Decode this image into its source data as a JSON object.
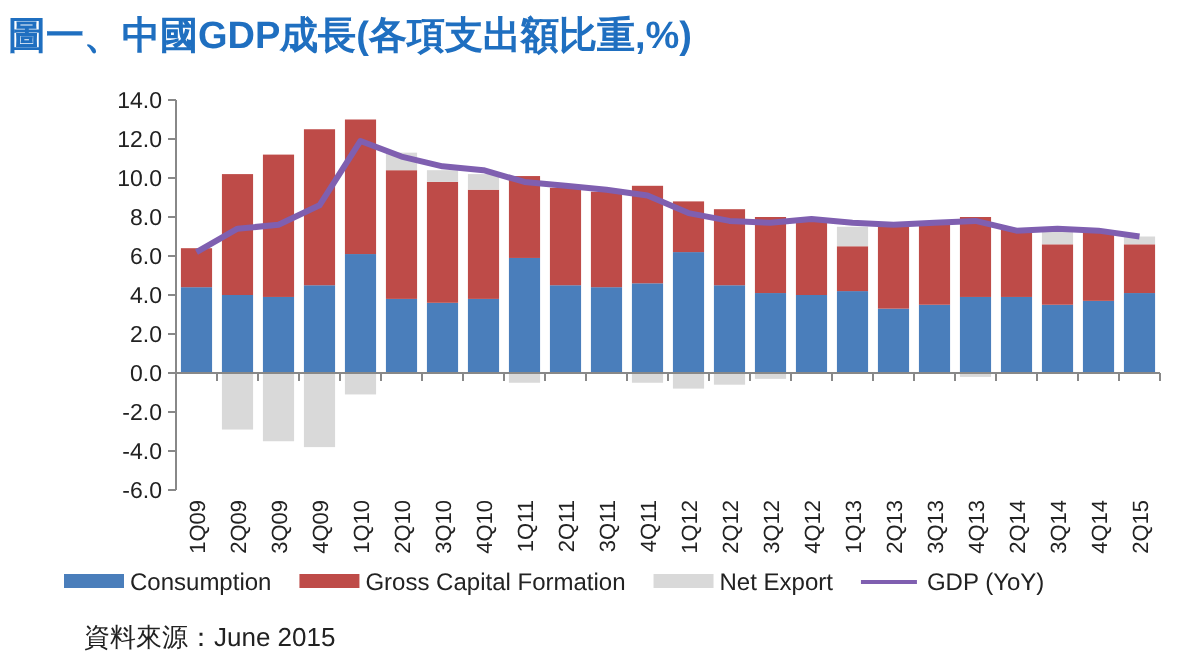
{
  "chart_data": {
    "type": "bar",
    "stacked": true,
    "title": "圖一、中國GDP成長(各項支出額比重,%)",
    "categories": [
      "1Q09",
      "2Q09",
      "3Q09",
      "4Q09",
      "1Q10",
      "2Q10",
      "3Q10",
      "4Q10",
      "1Q11",
      "2Q11",
      "3Q11",
      "4Q11",
      "1Q12",
      "2Q12",
      "3Q12",
      "4Q12",
      "1Q13",
      "2Q13",
      "3Q13",
      "4Q13",
      "2Q14",
      "3Q14",
      "4Q14",
      "2Q15"
    ],
    "series": [
      {
        "name": "Consumption",
        "color": "#4a7ebb",
        "values": [
          4.4,
          4.0,
          3.9,
          4.5,
          6.1,
          3.8,
          3.6,
          3.8,
          5.9,
          4.5,
          4.4,
          4.6,
          6.2,
          4.5,
          4.1,
          4.0,
          4.2,
          3.3,
          3.5,
          3.9,
          3.9,
          3.5,
          3.7,
          4.1
        ]
      },
      {
        "name": "Gross Capital Formation",
        "color": "#be4b48",
        "values": [
          2.0,
          6.2,
          7.3,
          8.0,
          6.9,
          6.6,
          6.2,
          5.6,
          4.2,
          5.0,
          4.9,
          5.0,
          2.6,
          3.9,
          3.9,
          3.8,
          2.3,
          4.2,
          4.2,
          4.1,
          3.5,
          3.1,
          3.6,
          2.5
        ]
      },
      {
        "name": "Net Export",
        "color": "#d9d9d9",
        "values": [
          null,
          -2.9,
          -3.5,
          -3.8,
          -1.1,
          0.9,
          0.6,
          0.8,
          -0.5,
          0.0,
          0.0,
          -0.5,
          -0.8,
          -0.6,
          -0.3,
          null,
          1.0,
          0.0,
          0.0,
          -0.2,
          null,
          0.7,
          0.0,
          0.4
        ]
      },
      {
        "name": "GDP (YoY)",
        "type": "line",
        "color": "#7f5fb0",
        "values": [
          6.2,
          7.4,
          7.6,
          8.6,
          11.9,
          11.1,
          10.6,
          10.4,
          9.8,
          9.6,
          9.4,
          9.1,
          8.2,
          7.8,
          7.7,
          7.9,
          7.7,
          7.6,
          7.7,
          7.8,
          7.3,
          7.4,
          7.3,
          7.0
        ]
      }
    ],
    "ylim": [
      -6,
      14
    ],
    "yticks": [
      {
        "value": -6,
        "label": "-6.0"
      },
      {
        "value": -4,
        "label": "-4.0"
      },
      {
        "value": -2,
        "label": "-2.0"
      },
      {
        "value": 0,
        "label": "0.0"
      },
      {
        "value": 2,
        "label": "2.0"
      },
      {
        "value": 4,
        "label": "4.0"
      },
      {
        "value": 6,
        "label": "6.0"
      },
      {
        "value": 8,
        "label": "8.0"
      },
      {
        "value": 10,
        "label": "10.0"
      },
      {
        "value": 12,
        "label": "12.0"
      },
      {
        "value": 14,
        "label": "14.0"
      }
    ],
    "legend": "bottom",
    "annotations": [
      "資料來源：June 2015"
    ]
  }
}
